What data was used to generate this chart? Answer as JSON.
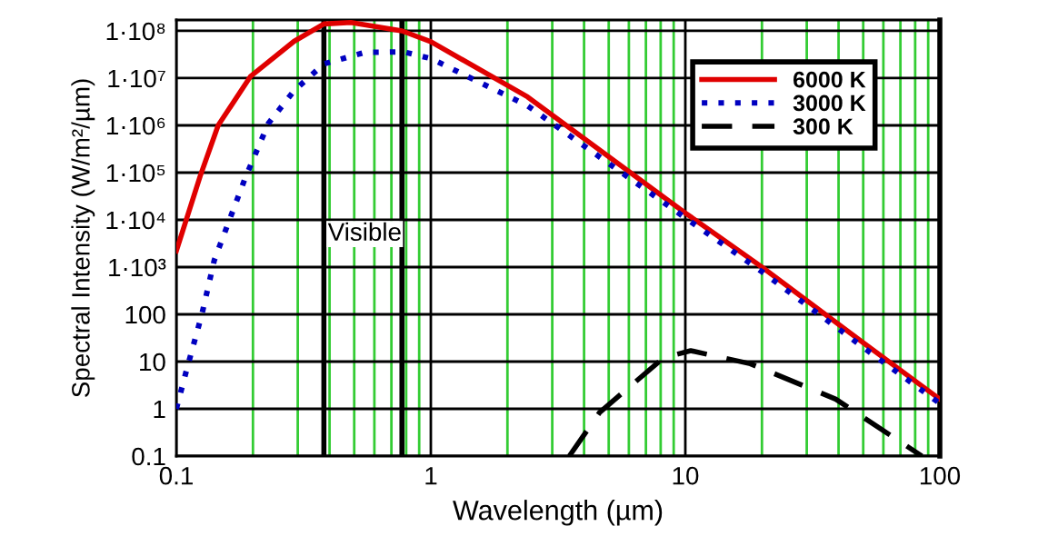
{
  "chart_data": {
    "type": "line",
    "xlabel": "Wavelength (µm)",
    "ylabel": "Spectral Intensity (W/m²/µm)",
    "log": "xy",
    "xlim": [
      0.1,
      100
    ],
    "ylim": [
      0.1,
      170000000
    ],
    "xticks": [
      0.1,
      {
        "value": 0.2,
        "label": null
      },
      {
        "value": 0.3,
        "label": null
      },
      {
        "value": 0.4,
        "label": null
      },
      {
        "value": 0.5,
        "label": null
      },
      {
        "value": 0.6,
        "label": null
      },
      {
        "value": 0.7,
        "label": null
      },
      {
        "value": 0.8,
        "label": null
      },
      {
        "value": 0.9,
        "label": null
      },
      1,
      {
        "value": 2,
        "label": null
      },
      {
        "value": 3,
        "label": null
      },
      {
        "value": 4,
        "label": null
      },
      {
        "value": 5,
        "label": null
      },
      {
        "value": 6,
        "label": null
      },
      {
        "value": 7,
        "label": null
      },
      {
        "value": 8,
        "label": null
      },
      {
        "value": 9,
        "label": null
      },
      10,
      {
        "value": 20,
        "label": null
      },
      {
        "value": 30,
        "label": null
      },
      {
        "value": 40,
        "label": null
      },
      {
        "value": 50,
        "label": null
      },
      {
        "value": 60,
        "label": null
      },
      {
        "value": 70,
        "label": null
      },
      {
        "value": 80,
        "label": null
      },
      {
        "value": 90,
        "label": null
      },
      100
    ],
    "yticks": [
      0.1,
      1,
      10,
      100,
      {
        "value": 1000,
        "label": "1·10³"
      },
      {
        "value": 10000,
        "label": "1·10⁴"
      },
      {
        "value": 100000,
        "label": "1·10⁵"
      },
      {
        "value": 1000000,
        "label": "1·10⁶"
      },
      {
        "value": 10000000,
        "label": "1·10⁷"
      },
      {
        "value": 100000000,
        "label": "1·10⁸"
      }
    ],
    "grid": true,
    "legend": "top right",
    "ref_lines": [
      {
        "axis": "x",
        "value": 0.38,
        "label": null,
        "color": "#000000"
      },
      {
        "axis": "x",
        "value": 0.77,
        "label": null,
        "color": "#000000"
      }
    ],
    "annotations": [
      {
        "text": "Visible",
        "x": 0.55,
        "y": 5000
      }
    ],
    "series": [
      {
        "name": "6000 K",
        "color": "#e00000",
        "line_style": "solid",
        "x": [
          0.1,
          0.124,
          0.146,
          0.196,
          0.29,
          0.38,
          0.485,
          0.77,
          1.0,
          2.4,
          10,
          20,
          50,
          100
        ],
        "values": [
          2200,
          83000,
          1000000,
          11000000,
          60000000,
          140000000,
          150000000,
          100000000,
          59000000,
          4000000,
          14000,
          1000,
          25,
          1.6
        ]
      },
      {
        "name": "3000 K",
        "color": "#0000c0",
        "line_style": "dotted",
        "x": [
          0.1,
          0.11,
          0.126,
          0.141,
          0.187,
          0.23,
          0.29,
          0.38,
          0.55,
          0.78,
          1.0,
          2.4,
          10,
          20,
          50,
          100
        ],
        "values": [
          1,
          7,
          100,
          1400,
          80000,
          1100000,
          5400000,
          20000000,
          35000000,
          36000000,
          26000000,
          2600000,
          11000,
          800,
          20,
          1.3
        ]
      },
      {
        "name": "300 K",
        "color": "#000000",
        "line_style": "dashed",
        "x": [
          3.5,
          4.6,
          8.2,
          10.5,
          18,
          39,
          85
        ],
        "values": [
          0.1,
          0.83,
          12,
          17,
          9,
          1.6,
          0.1
        ]
      }
    ]
  }
}
